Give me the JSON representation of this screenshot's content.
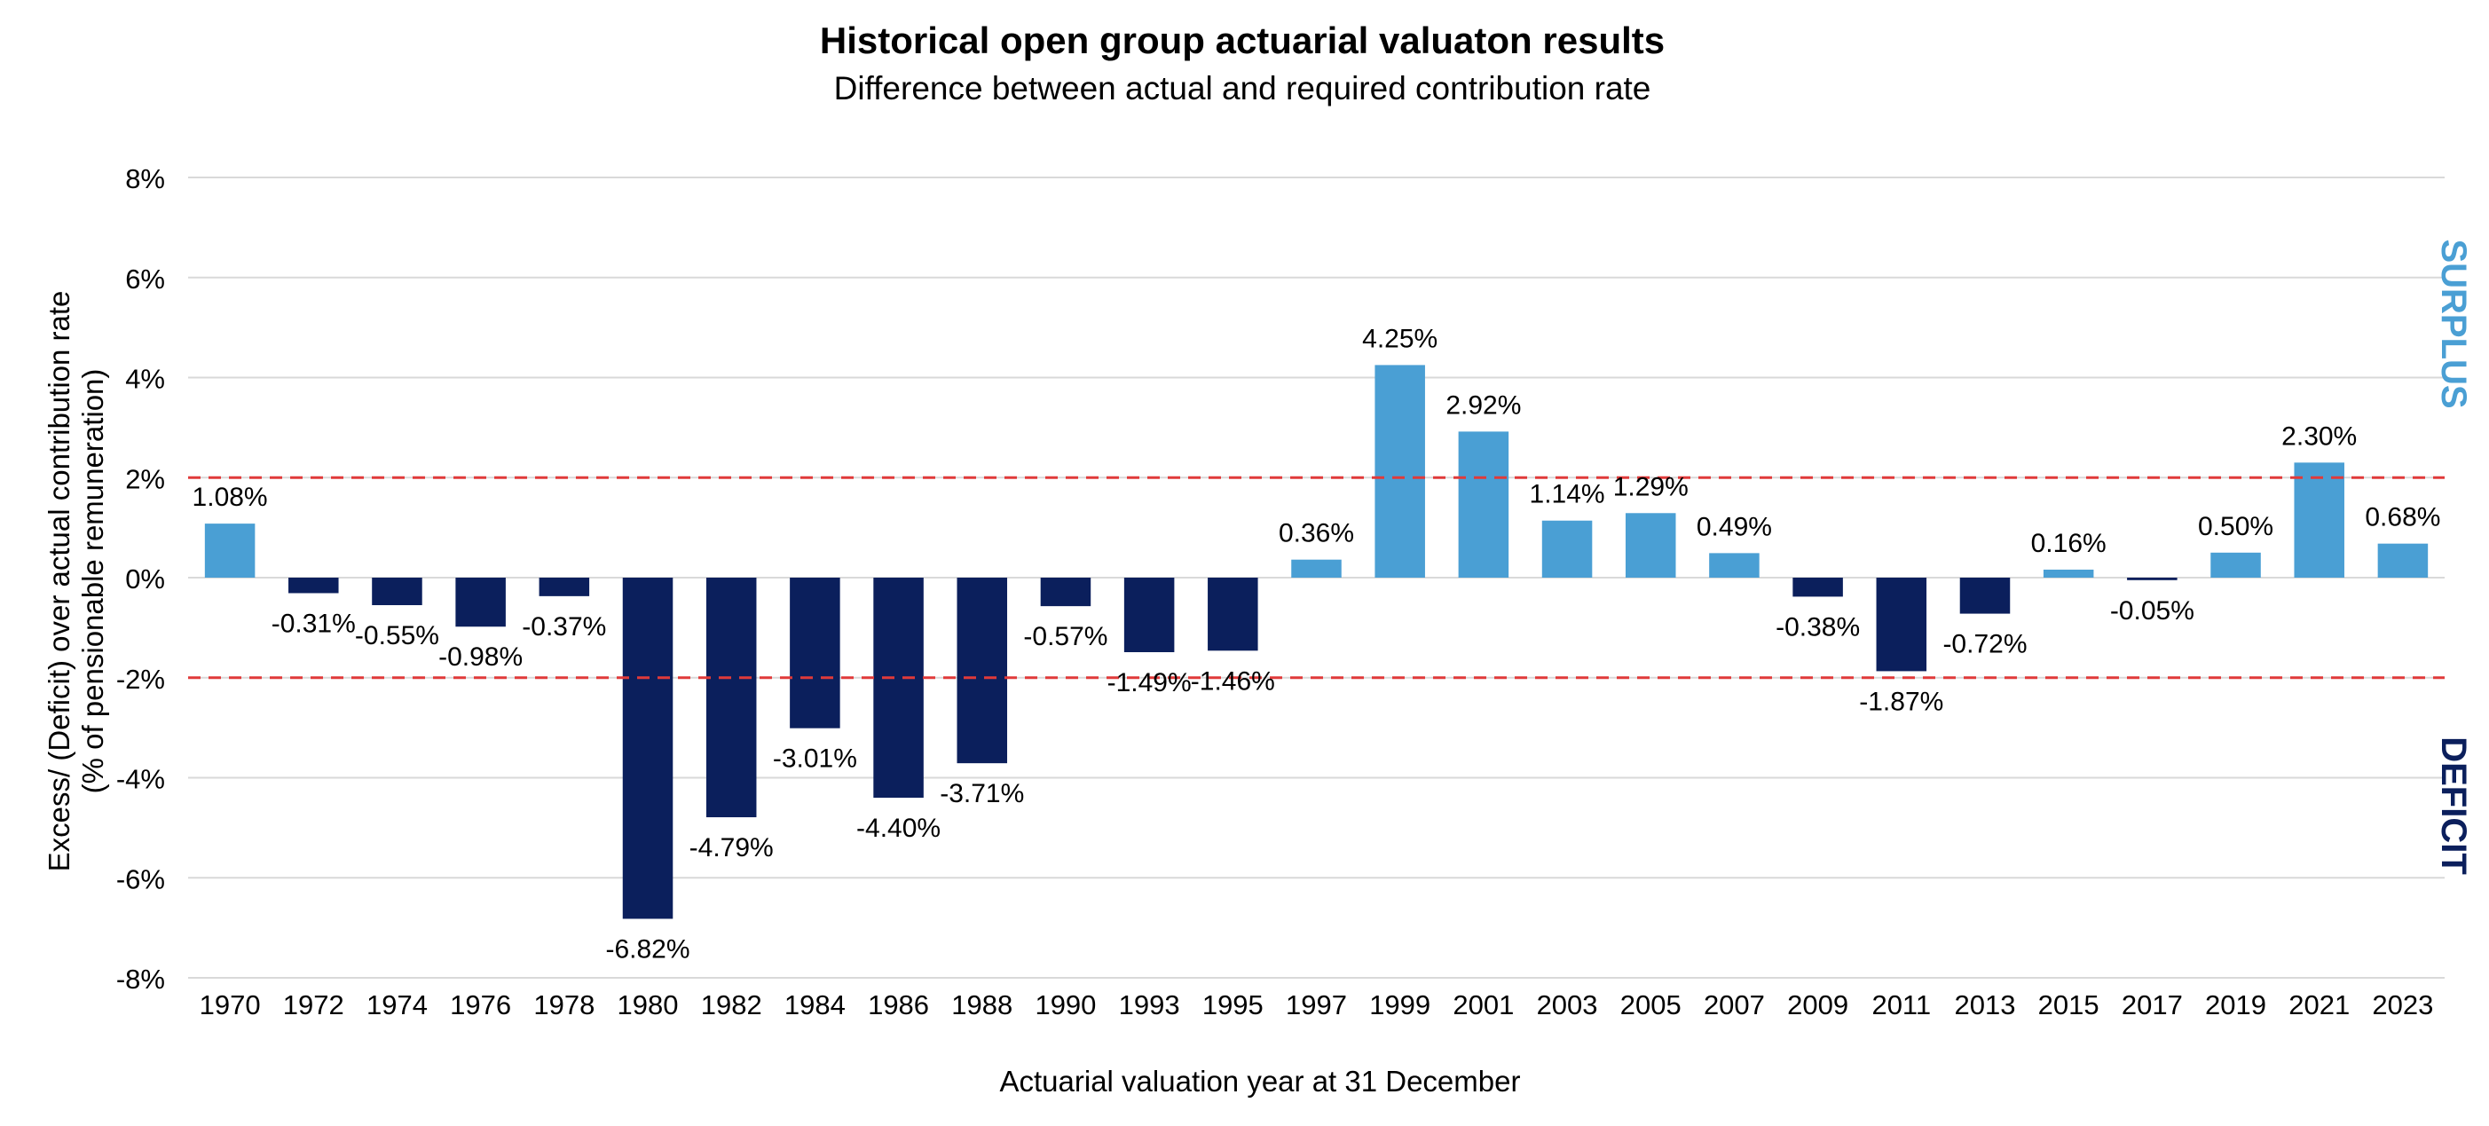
{
  "chart_data": {
    "type": "bar",
    "title": "Historical open group actuarial valuaton results",
    "subtitle": "Difference between actual and required contribution rate",
    "xlabel": "Actuarial valuation year at 31 December",
    "ylabel_line1": "Excess/ (Deficit) over actual contribution rate",
    "ylabel_line2": "(% of pensionable remuneration)",
    "ylim": [
      -8,
      8
    ],
    "yticks": [
      -8,
      -6,
      -4,
      -2,
      0,
      2,
      4,
      6,
      8
    ],
    "ytick_labels": [
      "-8%",
      "-6%",
      "-4%",
      "-2%",
      "0%",
      "2%",
      "4%",
      "6%",
      "8%"
    ],
    "categories": [
      "1970",
      "1972",
      "1974",
      "1976",
      "1978",
      "1980",
      "1982",
      "1984",
      "1986",
      "1988",
      "1990",
      "1993",
      "1995",
      "1997",
      "1999",
      "2001",
      "2003",
      "2005",
      "2007",
      "2009",
      "2011",
      "2013",
      "2015",
      "2017",
      "2019",
      "2021",
      "2023"
    ],
    "values": [
      1.08,
      -0.31,
      -0.55,
      -0.98,
      -0.37,
      -6.82,
      -4.79,
      -3.01,
      -4.4,
      -3.71,
      -0.57,
      -1.49,
      -1.46,
      0.36,
      4.25,
      2.92,
      1.14,
      1.29,
      0.49,
      -0.38,
      -1.87,
      -0.72,
      0.16,
      -0.05,
      0.5,
      2.3,
      0.68
    ],
    "data_labels": [
      "1.08%",
      "-0.31%",
      "-0.55%",
      "-0.98%",
      "-0.37%",
      "-6.82%",
      "-4.79%",
      "-3.01%",
      "-4.40%",
      "-3.71%",
      "-0.57%",
      "-1.49%",
      "-1.46%",
      "0.36%",
      "4.25%",
      "2.92%",
      "1.14%",
      "1.29%",
      "0.49%",
      "-0.38%",
      "-1.87%",
      "-0.72%",
      "0.16%",
      "-0.05%",
      "0.50%",
      "2.30%",
      "0.68%"
    ],
    "reference_lines": [
      2,
      -2
    ],
    "region_labels": {
      "surplus": "SURPLUS",
      "deficit": "DEFICIT"
    },
    "colors": {
      "positive": "#4a9fd4",
      "negative": "#0b1f5c",
      "reference_line": "#e03a3a",
      "grid": "#d9d9d9",
      "surplus_text": "#4a9fd4",
      "deficit_text": "#0b1f5c"
    },
    "grid": true
  }
}
